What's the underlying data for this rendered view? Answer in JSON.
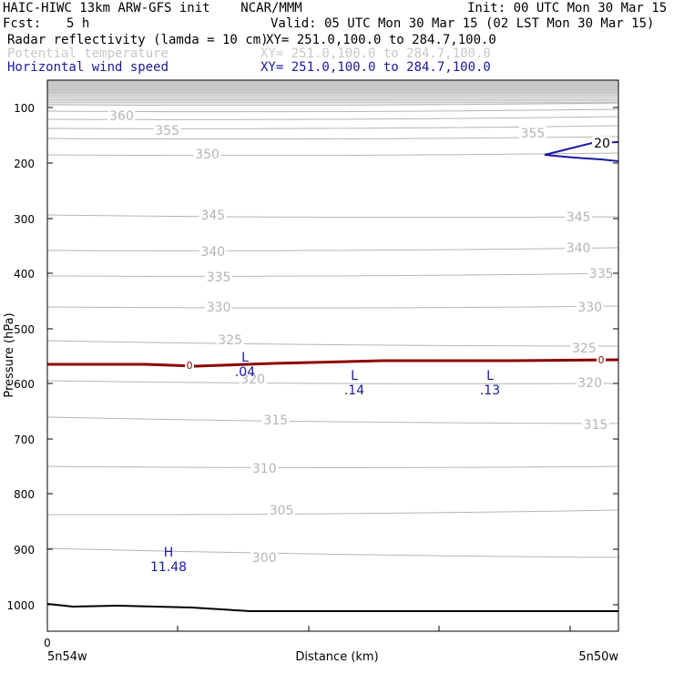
{
  "header": {
    "title_left": "HAIC-HIWC 13km ARW-GFS init    NCAR/MMM",
    "init": "Init: 00 UTC Mon 30 Mar 15",
    "fcst_label": "Fcst:",
    "fcst_value": "5 h",
    "valid": "Valid: 05 UTC Mon 30 Mar 15 (02 LST Mon 30 Mar 15)",
    "fields": [
      {
        "name": "Radar reflectivity (lamda = 10 cm)",
        "xy": "XY= 251.0,100.0 to 284.7,100.0",
        "style": "black"
      },
      {
        "name": "Potential temperature",
        "xy": "XY= 251.0,100.0 to 284.7,100.0",
        "style": "muted"
      },
      {
        "name": "Horizontal wind speed",
        "xy": "XY= 251.0,100.0 to 284.7,100.0",
        "style": "blue"
      }
    ]
  },
  "chart_data": {
    "type": "line",
    "xlabel": "Distance (km)",
    "ylabel": "Pressure (hPa)",
    "x_ticks_labels": {
      "left_value": "0",
      "left_location": "5n54w",
      "right_location": "5n50w"
    },
    "ylim": [
      1050,
      50
    ],
    "y_ticks": [
      100,
      200,
      300,
      400,
      500,
      600,
      700,
      800,
      900,
      1000
    ],
    "theta_contours": [
      {
        "label": "360",
        "label_pos": [
          0.13,
          127
        ]
      },
      {
        "label": "355",
        "label_pos": [
          0.21,
          143
        ]
      },
      {
        "label": "355",
        "label_pos": [
          0.85,
          146
        ]
      },
      {
        "label": "350",
        "label_pos": [
          0.28,
          169
        ]
      },
      {
        "label": "345",
        "label_pos": [
          0.29,
          236
        ]
      },
      {
        "label": "345",
        "label_pos": [
          0.93,
          238
        ]
      },
      {
        "label": "340",
        "label_pos": [
          0.29,
          276
        ]
      },
      {
        "label": "340",
        "label_pos": [
          0.93,
          272
        ]
      },
      {
        "label": "335",
        "label_pos": [
          0.3,
          304
        ]
      },
      {
        "label": "335",
        "label_pos": [
          0.97,
          300
        ]
      },
      {
        "label": "330",
        "label_pos": [
          0.3,
          337
        ]
      },
      {
        "label": "330",
        "label_pos": [
          0.95,
          337
        ]
      },
      {
        "label": "325",
        "label_pos": [
          0.32,
          373
        ]
      },
      {
        "label": "325",
        "label_pos": [
          0.94,
          382
        ]
      },
      {
        "label": "320",
        "label_pos": [
          0.36,
          416
        ]
      },
      {
        "label": "320",
        "label_pos": [
          0.95,
          420
        ]
      },
      {
        "label": "315",
        "label_pos": [
          0.4,
          461
        ]
      },
      {
        "label": "315",
        "label_pos": [
          0.96,
          466
        ]
      },
      {
        "label": "310",
        "label_pos": [
          0.38,
          514
        ]
      },
      {
        "label": "305",
        "label_pos": [
          0.41,
          560
        ]
      },
      {
        "label": "300",
        "label_pos": [
          0.38,
          612
        ]
      }
    ],
    "reflectivity_zero_contour": {
      "label": "0"
    },
    "wind_contour": {
      "label": "20"
    },
    "extrema": [
      {
        "kind": "L",
        "value": ".04"
      },
      {
        "kind": "L",
        "value": ".14"
      },
      {
        "kind": "L",
        "value": ".13"
      },
      {
        "kind": "H",
        "value": "11.48"
      }
    ],
    "grid": false,
    "colors": {
      "theta": "#b4b4b4",
      "reflectivity": "#8b0000",
      "wind": "#1a1a9c",
      "terrain": "#000000",
      "top_band": "#c8c8c8"
    }
  }
}
